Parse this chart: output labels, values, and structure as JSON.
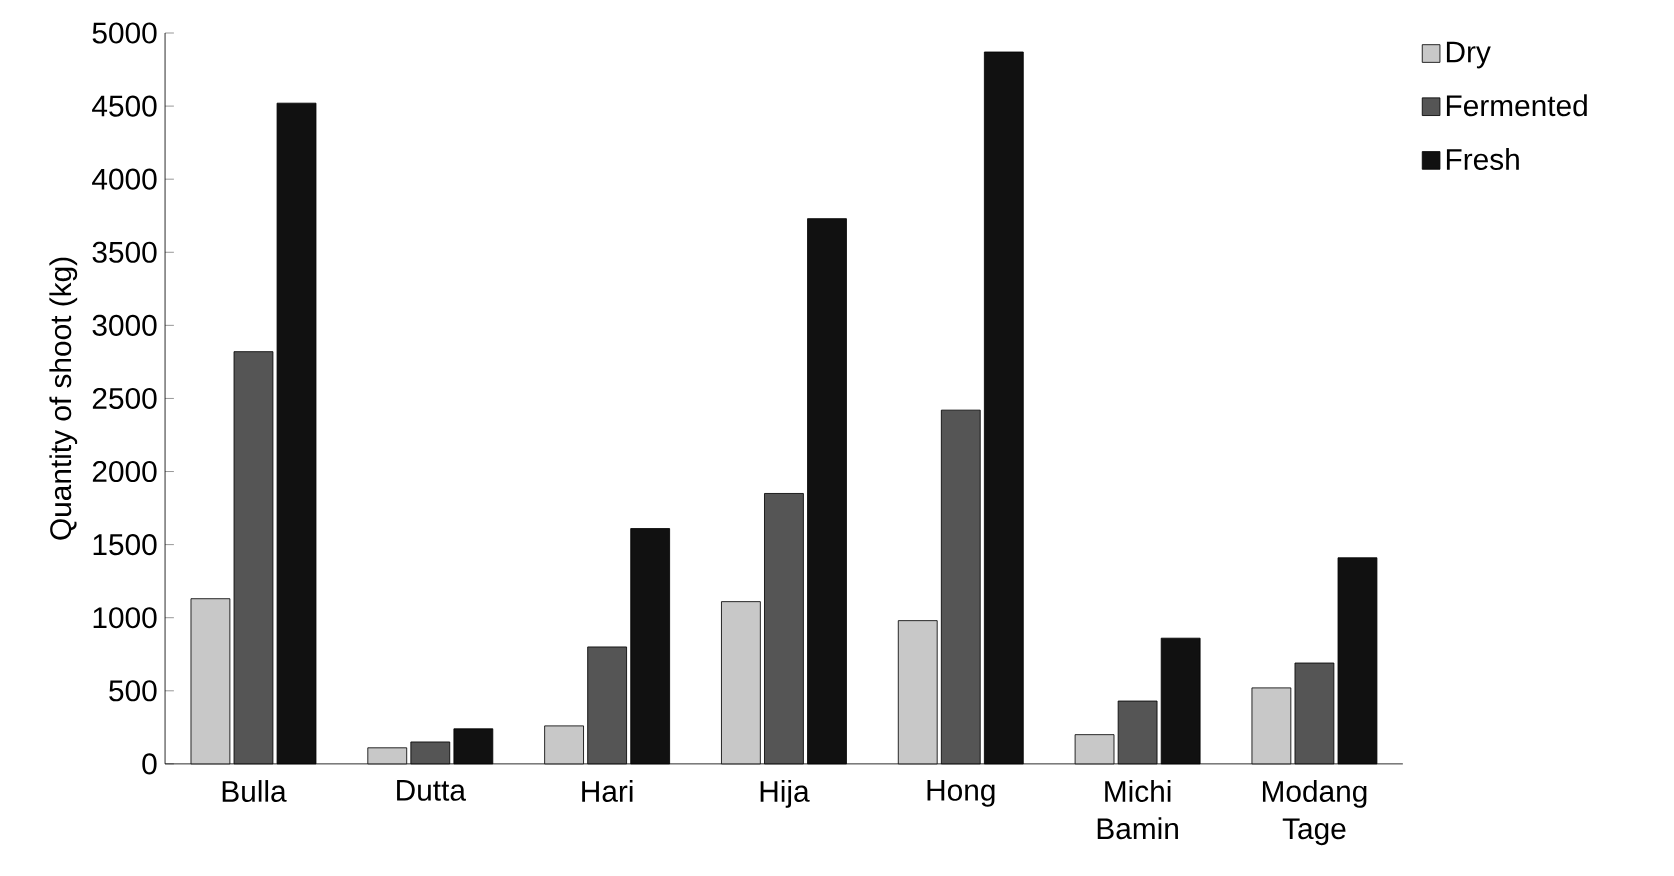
{
  "chart_data": {
    "type": "bar",
    "ylabel": "Quantity of shoot (kg)",
    "categories": [
      "Bulla",
      "Dutta",
      "Hari",
      "Hija",
      "Hong",
      "Michi Bamin",
      "Modang Tage"
    ],
    "series": [
      {
        "name": "Dry",
        "color": "#c8c8c8",
        "values": [
          1130,
          110,
          260,
          1110,
          980,
          200,
          520
        ]
      },
      {
        "name": "Fermented",
        "color": "#555555",
        "values": [
          2820,
          150,
          800,
          1850,
          2420,
          430,
          690
        ]
      },
      {
        "name": "Fresh",
        "color": "#111111",
        "values": [
          4520,
          240,
          1610,
          3730,
          4870,
          860,
          1410
        ]
      }
    ],
    "ylim": [
      0,
      5000
    ],
    "yticks": [
      0,
      500,
      1000,
      1500,
      2000,
      2500,
      3000,
      3500,
      4000,
      4500,
      5000
    ],
    "grid": false,
    "legend": "top right"
  }
}
